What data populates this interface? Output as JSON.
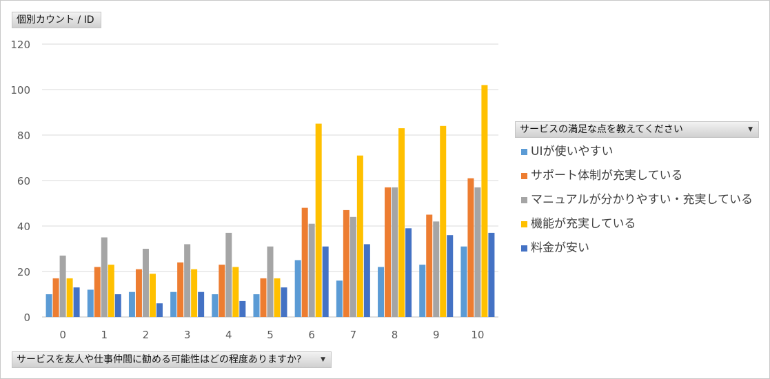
{
  "value_field": {
    "label": "個別カウント / ID"
  },
  "axis_field": {
    "label": "サービスを友人や仕事仲間に勧める可能性はどの程度ありますか?",
    "icon": "dropdown-arrow-icon"
  },
  "legend_field": {
    "label": "サービスの満足な点を教えてください",
    "icon": "dropdown-arrow-icon"
  },
  "chart_data": {
    "type": "bar",
    "categories": [
      "0",
      "1",
      "2",
      "3",
      "4",
      "5",
      "6",
      "7",
      "8",
      "9",
      "10"
    ],
    "ylim": [
      0,
      120
    ],
    "yticks": [
      0,
      20,
      40,
      60,
      80,
      100,
      120
    ],
    "grid": true,
    "legend_position": "right",
    "series": [
      {
        "name": "UIが使いやすい",
        "color": "#5b9bd5",
        "values": [
          10,
          12,
          11,
          11,
          10,
          10,
          25,
          16,
          22,
          23,
          31
        ]
      },
      {
        "name": "サポート体制が充実している",
        "color": "#ed7d31",
        "values": [
          17,
          22,
          21,
          24,
          23,
          17,
          48,
          47,
          57,
          45,
          61
        ]
      },
      {
        "name": "マニュアルが分かりやすい・充実している",
        "color": "#a5a5a5",
        "values": [
          27,
          35,
          30,
          32,
          37,
          31,
          41,
          44,
          57,
          42,
          57
        ]
      },
      {
        "name": "機能が充実している",
        "color": "#ffc000",
        "values": [
          17,
          23,
          19,
          21,
          22,
          17,
          85,
          71,
          83,
          84,
          102
        ]
      },
      {
        "name": "料金が安い",
        "color": "#4472c4",
        "values": [
          13,
          10,
          6,
          11,
          7,
          13,
          31,
          32,
          39,
          36,
          37
        ]
      }
    ]
  }
}
